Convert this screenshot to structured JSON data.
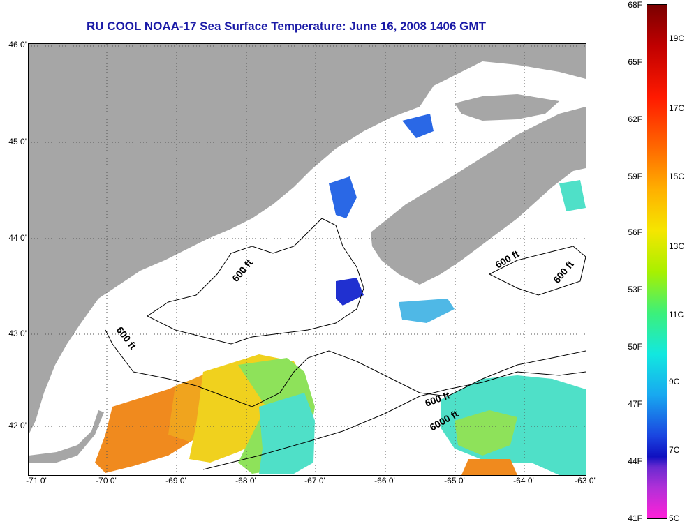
{
  "title": "RU COOL  NOAA-17  Sea Surface Temperature:  June 16, 2008 1406 GMT",
  "latitude_labels": [
    "46 0'",
    "45 0'",
    "44 0'",
    "43 0'",
    "42 0'"
  ],
  "longitude_labels": [
    "-71 0'",
    "-70 0'",
    "-69 0'",
    "-68 0'",
    "-67 0'",
    "-66 0'",
    "-65 0'",
    "-64 0'",
    "-63 0'"
  ],
  "contour_labels": {
    "c600_maine": "600 ft",
    "c600_west": "600 ft",
    "c600_east": "600 ft",
    "c600_scotia1": "600 ft",
    "c600_scotia2": "600 ft",
    "c6000": "6000 ft"
  },
  "colorbar": {
    "fahrenheit": [
      "68F",
      "65F",
      "62F",
      "59F",
      "56F",
      "53F",
      "50F",
      "47F",
      "44F",
      "41F"
    ],
    "celsius": [
      "19C",
      "17C",
      "15C",
      "13C",
      "11C",
      "9C",
      "7C",
      "5C"
    ]
  },
  "colors": {
    "land": "#a6a6a6",
    "title": "#1a1aa6",
    "sst_warm": "#f08a1e",
    "sst_yellow": "#f0d11e",
    "sst_green": "#8ee25a",
    "sst_cyan": "#4fe0c8",
    "sst_blue": "#2a68e6"
  }
}
